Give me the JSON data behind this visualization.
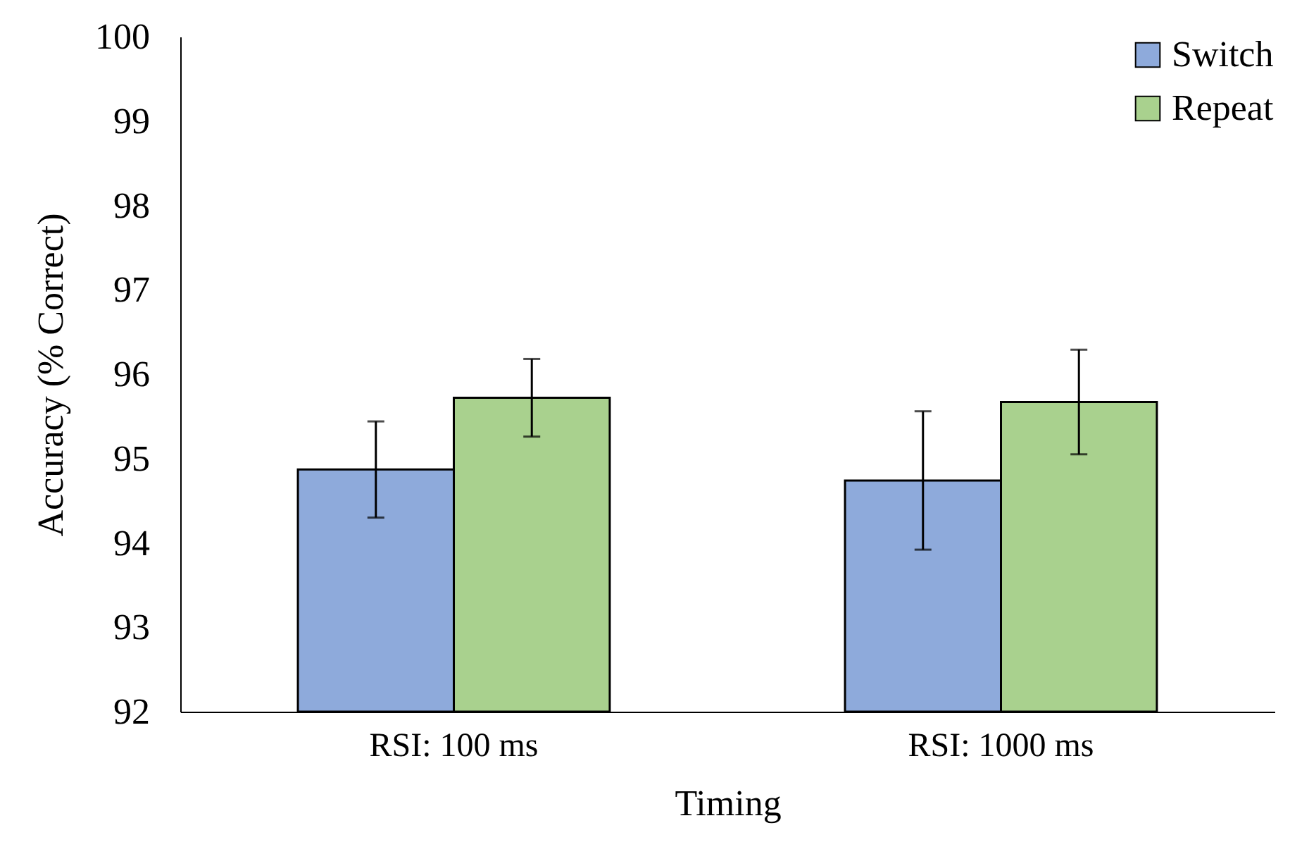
{
  "chart_data": {
    "type": "bar",
    "xlabel": "Timing",
    "ylabel": "Accuracy (% Correct)",
    "categories": [
      "RSI: 100 ms",
      "RSI: 1000 ms"
    ],
    "series": [
      {
        "name": "Switch",
        "color": "#8eaadb",
        "values": [
          94.87,
          94.74
        ],
        "errors": [
          0.57,
          0.82
        ]
      },
      {
        "name": "Repeat",
        "color": "#a9d18e",
        "values": [
          95.72,
          95.67
        ],
        "errors": [
          0.46,
          0.62
        ]
      }
    ],
    "ylim": [
      92,
      100
    ],
    "yticks": [
      92,
      93,
      94,
      95,
      96,
      97,
      98,
      99,
      100
    ],
    "legend": "top right"
  }
}
